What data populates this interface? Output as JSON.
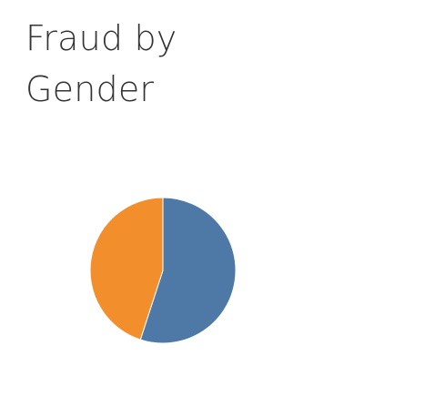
{
  "chart_data": {
    "type": "pie",
    "title": "Fraud by Gender",
    "slices": [
      {
        "value": 0.55,
        "color": "#4e79a7"
      },
      {
        "value": 0.45,
        "color": "#f28e2b"
      }
    ],
    "start_angle_deg": 0,
    "legend": "none"
  }
}
